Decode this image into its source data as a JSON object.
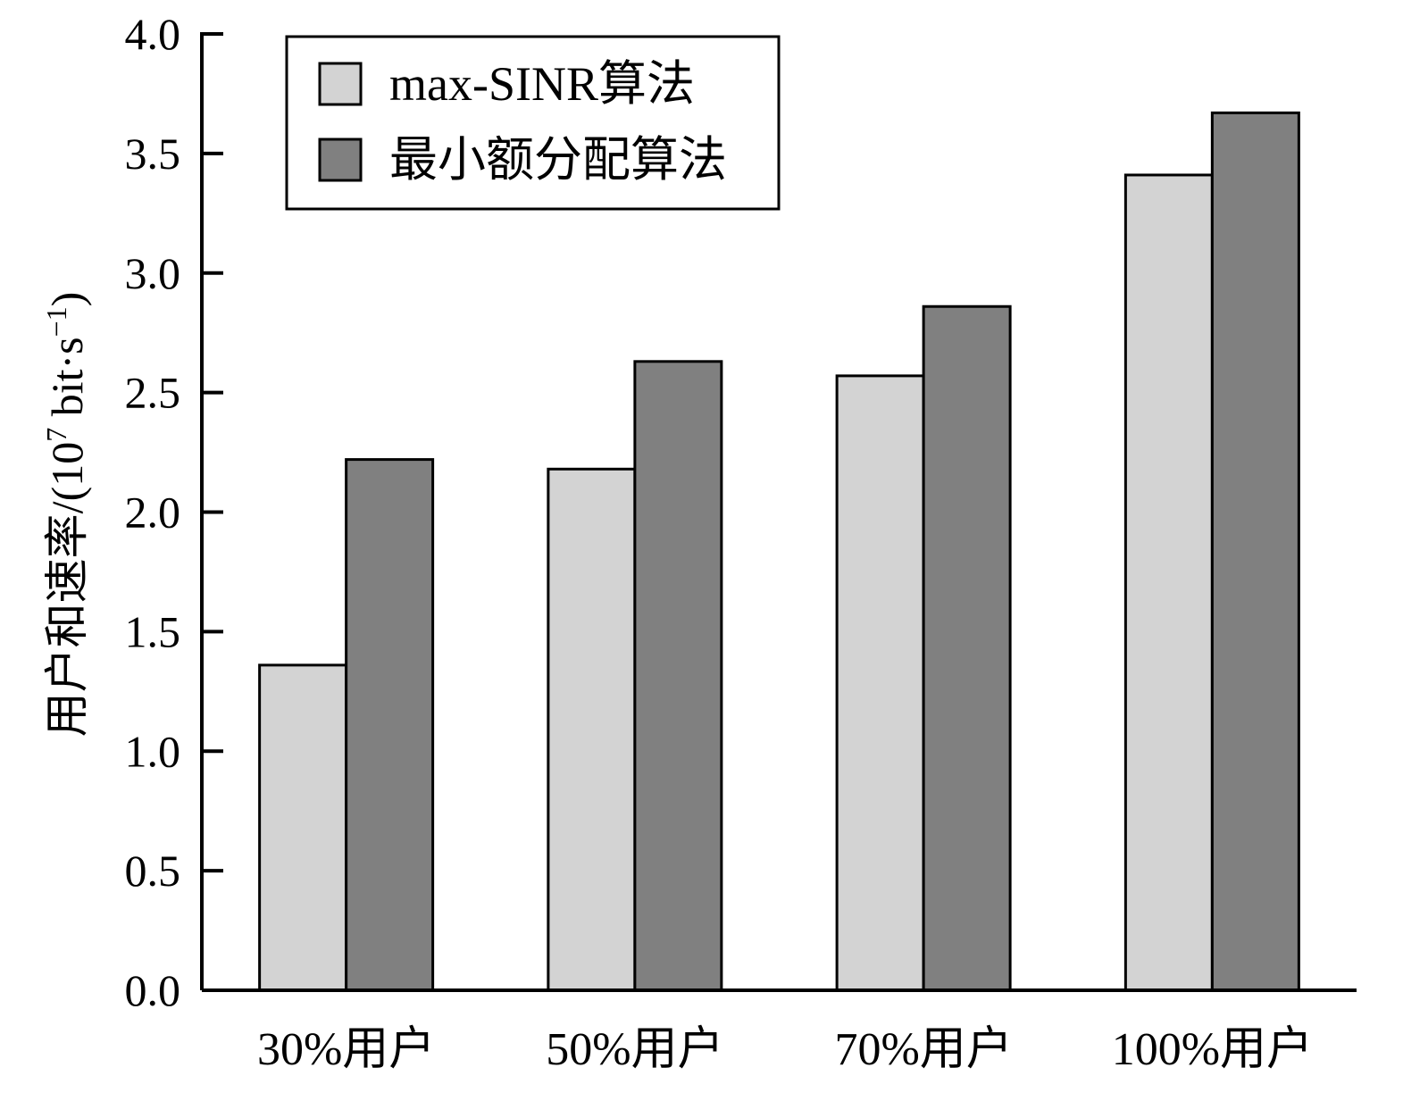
{
  "chart_data": {
    "type": "bar",
    "categories": [
      "30%用户",
      "50%用户",
      "70%用户",
      "100%用户"
    ],
    "series": [
      {
        "name": "max-SINR算法",
        "values": [
          1.36,
          2.18,
          2.57,
          3.41
        ],
        "color": "#d3d3d3"
      },
      {
        "name": "最小额分配算法",
        "values": [
          2.22,
          2.63,
          2.86,
          3.67
        ],
        "color": "#808080"
      }
    ],
    "title": "",
    "xlabel": "",
    "ylabel": {
      "main": "用户和速率/(10",
      "exp1": "7",
      "mid": " bit·s",
      "exp2": "−1",
      "end": ")"
    },
    "ylim": [
      0,
      4.0
    ],
    "yticks": [
      "0.0",
      "0.5",
      "1.0",
      "1.5",
      "2.0",
      "2.5",
      "3.0",
      "3.5",
      "4.0"
    ],
    "legend_position": "top-left",
    "grid": false
  }
}
